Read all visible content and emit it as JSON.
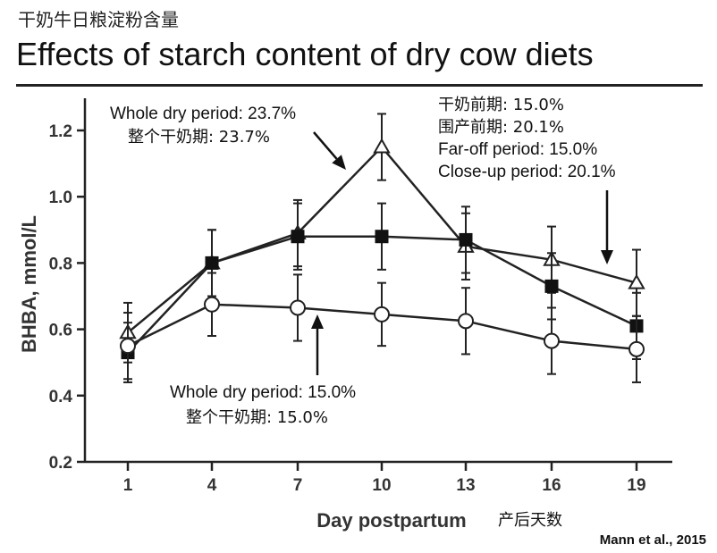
{
  "slide": {
    "subtitle_cn": "干奶牛日粮淀粉含量",
    "title": "Effects of starch content of dry cow diets",
    "citation": "Mann et al., 2015"
  },
  "chart_data": {
    "type": "line",
    "xlabel": "Day postpartum",
    "xlabel_cn": "产后天数",
    "ylabel": "BHBA, mmol/L",
    "categories": [
      1,
      4,
      7,
      10,
      13,
      16,
      19
    ],
    "ylim": [
      0.2,
      1.3
    ],
    "yticks": [
      "0.2",
      "0.4",
      "0.6",
      "0.8",
      "1.0",
      "1.2"
    ],
    "grid": false,
    "series": [
      {
        "marker": "triangle-open",
        "values": [
          0.59,
          0.8,
          0.89,
          1.15,
          0.85,
          0.81,
          0.74
        ],
        "errors": [
          0.09,
          0.1,
          0.1,
          0.1,
          0.1,
          0.1,
          0.1
        ]
      },
      {
        "marker": "square-filled",
        "values": [
          0.53,
          0.8,
          0.88,
          0.88,
          0.87,
          0.73,
          0.61
        ],
        "errors": [
          0.09,
          0.1,
          0.1,
          0.1,
          0.1,
          0.1,
          0.1
        ]
      },
      {
        "marker": "circle-open",
        "values": [
          0.55,
          0.675,
          0.665,
          0.645,
          0.625,
          0.565,
          0.54
        ],
        "errors": [
          0.1,
          0.095,
          0.1,
          0.095,
          0.1,
          0.1,
          0.1
        ]
      }
    ],
    "annotations": [
      {
        "lines": [
          "Whole dry period: 23.7%",
          "整个干奶期: 23.7%"
        ]
      },
      {
        "lines": [
          "干奶前期: 15.0%",
          "围产前期: 20.1%",
          "Far-off period: 15.0%",
          "Close-up period: 20.1%"
        ]
      },
      {
        "lines": [
          "Whole dry period: 15.0%",
          "整个干奶期: 15.0%"
        ]
      }
    ]
  }
}
